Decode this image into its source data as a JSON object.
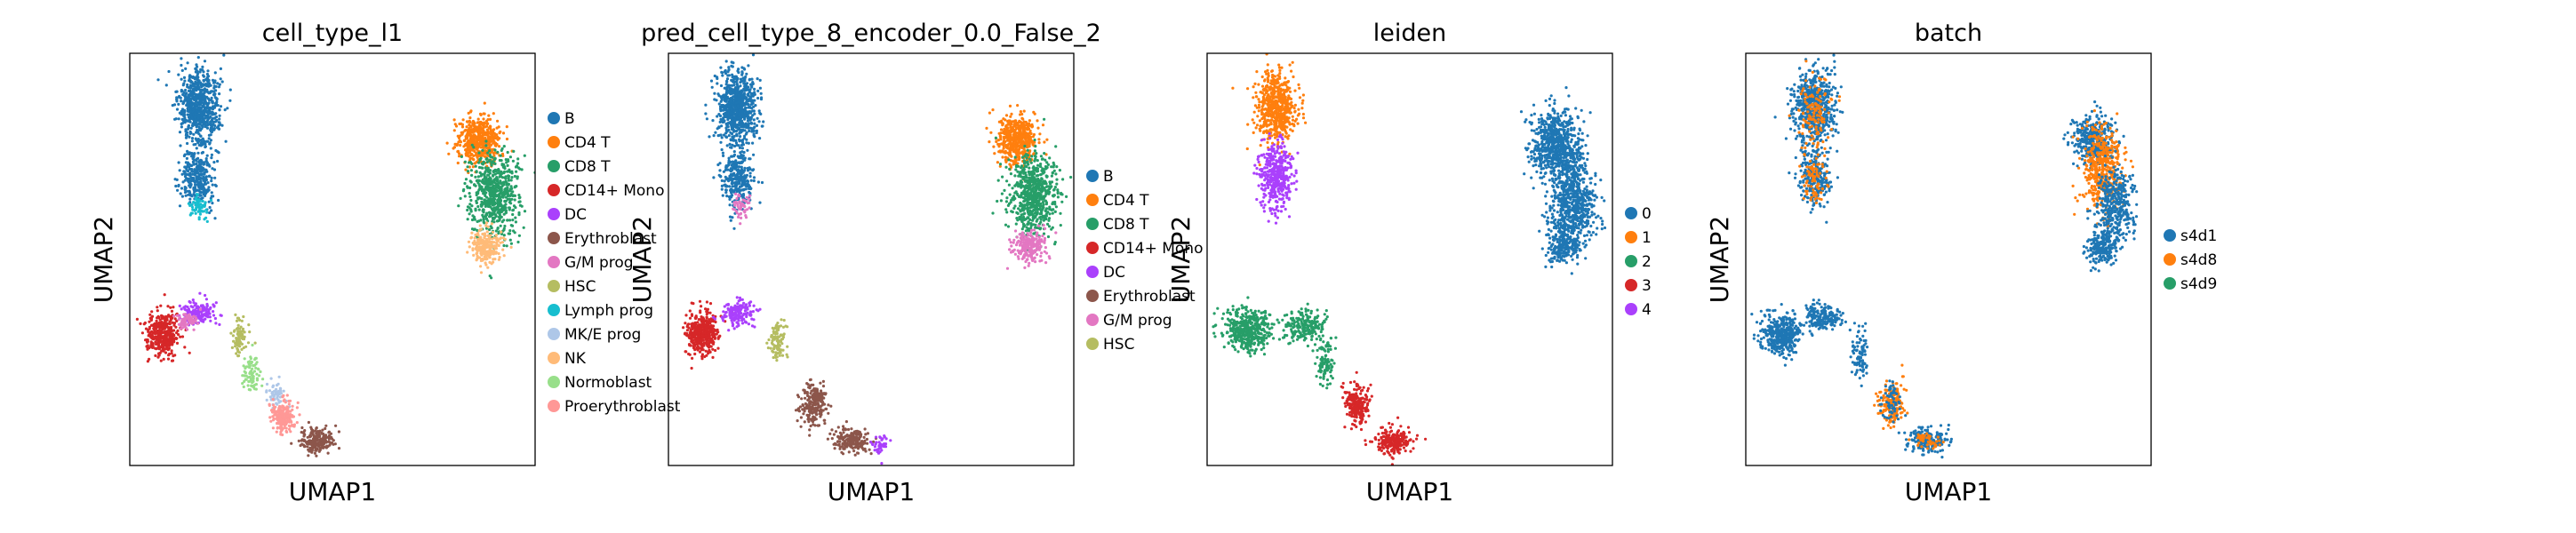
{
  "figure": {
    "panel_count": 4
  },
  "chart_data": [
    {
      "type": "scatter",
      "title": "cell_type_l1",
      "xlabel": "UMAP1",
      "ylabel": "UMAP2",
      "grid": false,
      "legend_position": "right",
      "categories": [
        "B",
        "CD4 T",
        "CD8 T",
        "CD14+ Mono",
        "DC",
        "Erythroblast",
        "G/M prog",
        "HSC",
        "Lymph prog",
        "MK/E prog",
        "NK",
        "Normoblast",
        "Proerythroblast"
      ],
      "colors": [
        "#1f77b4",
        "#ff7f0e",
        "#279e68",
        "#d62728",
        "#aa40fc",
        "#8c564b",
        "#e377c2",
        "#b5bd61",
        "#17becf",
        "#aec7e8",
        "#ffbb78",
        "#98df8a",
        "#ff9896"
      ],
      "clusters": [
        {
          "category": "B",
          "cx": 0.17,
          "cy": 0.87,
          "rx": 0.05,
          "ry": 0.09,
          "n": 700
        },
        {
          "category": "B",
          "cx": 0.17,
          "cy": 0.7,
          "rx": 0.04,
          "ry": 0.07,
          "n": 300
        },
        {
          "category": "Lymph prog",
          "cx": 0.17,
          "cy": 0.63,
          "rx": 0.02,
          "ry": 0.03,
          "n": 60
        },
        {
          "category": "CD4 T",
          "cx": 0.86,
          "cy": 0.79,
          "rx": 0.05,
          "ry": 0.06,
          "n": 500
        },
        {
          "category": "CD8 T",
          "cx": 0.9,
          "cy": 0.66,
          "rx": 0.06,
          "ry": 0.1,
          "n": 650
        },
        {
          "category": "NK",
          "cx": 0.88,
          "cy": 0.53,
          "rx": 0.04,
          "ry": 0.04,
          "n": 220
        },
        {
          "category": "CD14+ Mono",
          "cx": 0.08,
          "cy": 0.32,
          "rx": 0.04,
          "ry": 0.05,
          "n": 400
        },
        {
          "category": "DC",
          "cx": 0.17,
          "cy": 0.37,
          "rx": 0.04,
          "ry": 0.03,
          "n": 150
        },
        {
          "category": "HSC",
          "cx": 0.27,
          "cy": 0.31,
          "rx": 0.02,
          "ry": 0.04,
          "n": 80
        },
        {
          "category": "G/M prog",
          "cx": 0.14,
          "cy": 0.35,
          "rx": 0.03,
          "ry": 0.02,
          "n": 60
        },
        {
          "category": "Normoblast",
          "cx": 0.3,
          "cy": 0.22,
          "rx": 0.02,
          "ry": 0.05,
          "n": 80
        },
        {
          "category": "MK/E prog",
          "cx": 0.36,
          "cy": 0.17,
          "rx": 0.02,
          "ry": 0.03,
          "n": 60
        },
        {
          "category": "Proerythroblast",
          "cx": 0.38,
          "cy": 0.12,
          "rx": 0.03,
          "ry": 0.04,
          "n": 200
        },
        {
          "category": "Erythroblast",
          "cx": 0.46,
          "cy": 0.06,
          "rx": 0.04,
          "ry": 0.03,
          "n": 200
        }
      ]
    },
    {
      "type": "scatter",
      "title": "pred_cell_type_8_encoder_0.0_False_2",
      "xlabel": "UMAP1",
      "ylabel": "UMAP2",
      "grid": false,
      "legend_position": "right",
      "categories": [
        "B",
        "CD4 T",
        "CD8 T",
        "CD14+ Mono",
        "DC",
        "Erythroblast",
        "G/M prog",
        "HSC"
      ],
      "colors": [
        "#1f77b4",
        "#ff7f0e",
        "#279e68",
        "#d62728",
        "#aa40fc",
        "#8c564b",
        "#e377c2",
        "#b5bd61"
      ],
      "clusters": [
        {
          "category": "B",
          "cx": 0.17,
          "cy": 0.87,
          "rx": 0.05,
          "ry": 0.09,
          "n": 700
        },
        {
          "category": "B",
          "cx": 0.17,
          "cy": 0.7,
          "rx": 0.04,
          "ry": 0.07,
          "n": 300
        },
        {
          "category": "G/M prog",
          "cx": 0.18,
          "cy": 0.63,
          "rx": 0.02,
          "ry": 0.03,
          "n": 60
        },
        {
          "category": "CD4 T",
          "cx": 0.86,
          "cy": 0.79,
          "rx": 0.05,
          "ry": 0.06,
          "n": 500
        },
        {
          "category": "CD8 T",
          "cx": 0.9,
          "cy": 0.66,
          "rx": 0.06,
          "ry": 0.1,
          "n": 650
        },
        {
          "category": "G/M prog",
          "cx": 0.89,
          "cy": 0.53,
          "rx": 0.04,
          "ry": 0.04,
          "n": 220
        },
        {
          "category": "CD14+ Mono",
          "cx": 0.08,
          "cy": 0.32,
          "rx": 0.04,
          "ry": 0.05,
          "n": 400
        },
        {
          "category": "DC",
          "cx": 0.17,
          "cy": 0.37,
          "rx": 0.04,
          "ry": 0.03,
          "n": 150
        },
        {
          "category": "HSC",
          "cx": 0.27,
          "cy": 0.3,
          "rx": 0.02,
          "ry": 0.05,
          "n": 100
        },
        {
          "category": "Erythroblast",
          "cx": 0.36,
          "cy": 0.15,
          "rx": 0.03,
          "ry": 0.05,
          "n": 220
        },
        {
          "category": "Erythroblast",
          "cx": 0.45,
          "cy": 0.06,
          "rx": 0.04,
          "ry": 0.03,
          "n": 200
        },
        {
          "category": "DC",
          "cx": 0.52,
          "cy": 0.05,
          "rx": 0.02,
          "ry": 0.02,
          "n": 40
        }
      ]
    },
    {
      "type": "scatter",
      "title": "leiden",
      "xlabel": "UMAP1",
      "ylabel": "UMAP2",
      "grid": false,
      "legend_position": "right",
      "categories": [
        "0",
        "1",
        "2",
        "3",
        "4"
      ],
      "colors": [
        "#1f77b4",
        "#ff7f0e",
        "#279e68",
        "#d62728",
        "#aa40fc"
      ],
      "clusters": [
        {
          "category": "1",
          "cx": 0.17,
          "cy": 0.87,
          "rx": 0.05,
          "ry": 0.08,
          "n": 600
        },
        {
          "category": "4",
          "cx": 0.17,
          "cy": 0.7,
          "rx": 0.04,
          "ry": 0.08,
          "n": 400
        },
        {
          "category": "0",
          "cx": 0.86,
          "cy": 0.78,
          "rx": 0.06,
          "ry": 0.08,
          "n": 700
        },
        {
          "category": "0",
          "cx": 0.9,
          "cy": 0.64,
          "rx": 0.06,
          "ry": 0.1,
          "n": 650
        },
        {
          "category": "0",
          "cx": 0.88,
          "cy": 0.53,
          "rx": 0.04,
          "ry": 0.04,
          "n": 200
        },
        {
          "category": "2",
          "cx": 0.1,
          "cy": 0.33,
          "rx": 0.06,
          "ry": 0.05,
          "n": 450
        },
        {
          "category": "2",
          "cx": 0.24,
          "cy": 0.34,
          "rx": 0.05,
          "ry": 0.04,
          "n": 200
        },
        {
          "category": "2",
          "cx": 0.29,
          "cy": 0.25,
          "rx": 0.02,
          "ry": 0.06,
          "n": 100
        },
        {
          "category": "3",
          "cx": 0.37,
          "cy": 0.15,
          "rx": 0.03,
          "ry": 0.05,
          "n": 220
        },
        {
          "category": "3",
          "cx": 0.46,
          "cy": 0.06,
          "rx": 0.05,
          "ry": 0.03,
          "n": 220
        }
      ]
    },
    {
      "type": "scatter",
      "title": "batch",
      "xlabel": "UMAP1",
      "ylabel": "UMAP2",
      "grid": false,
      "legend_position": "right",
      "categories": [
        "s4d1",
        "s4d8",
        "s4d9"
      ],
      "colors": [
        "#1f77b4",
        "#ff7f0e",
        "#279e68"
      ],
      "clusters": [
        {
          "category": "s4d1",
          "cx": 0.17,
          "cy": 0.87,
          "rx": 0.05,
          "ry": 0.09,
          "n": 600
        },
        {
          "category": "s4d8",
          "cx": 0.17,
          "cy": 0.85,
          "rx": 0.04,
          "ry": 0.08,
          "n": 120
        },
        {
          "category": "s4d1",
          "cx": 0.17,
          "cy": 0.7,
          "rx": 0.04,
          "ry": 0.07,
          "n": 250
        },
        {
          "category": "s4d8",
          "cx": 0.17,
          "cy": 0.7,
          "rx": 0.03,
          "ry": 0.06,
          "n": 80
        },
        {
          "category": "s4d1",
          "cx": 0.86,
          "cy": 0.79,
          "rx": 0.05,
          "ry": 0.06,
          "n": 400
        },
        {
          "category": "s4d8",
          "cx": 0.88,
          "cy": 0.72,
          "rx": 0.05,
          "ry": 0.1,
          "n": 450
        },
        {
          "category": "s4d1",
          "cx": 0.91,
          "cy": 0.63,
          "rx": 0.05,
          "ry": 0.09,
          "n": 350
        },
        {
          "category": "s4d1",
          "cx": 0.88,
          "cy": 0.53,
          "rx": 0.04,
          "ry": 0.04,
          "n": 200
        },
        {
          "category": "s4d1",
          "cx": 0.09,
          "cy": 0.32,
          "rx": 0.05,
          "ry": 0.05,
          "n": 400
        },
        {
          "category": "s4d1",
          "cx": 0.19,
          "cy": 0.36,
          "rx": 0.05,
          "ry": 0.03,
          "n": 180
        },
        {
          "category": "s4d1",
          "cx": 0.28,
          "cy": 0.27,
          "rx": 0.02,
          "ry": 0.06,
          "n": 90
        },
        {
          "category": "s4d8",
          "cx": 0.36,
          "cy": 0.15,
          "rx": 0.03,
          "ry": 0.05,
          "n": 180
        },
        {
          "category": "s4d1",
          "cx": 0.36,
          "cy": 0.15,
          "rx": 0.03,
          "ry": 0.05,
          "n": 60
        },
        {
          "category": "s4d1",
          "cx": 0.45,
          "cy": 0.06,
          "rx": 0.05,
          "ry": 0.03,
          "n": 200
        },
        {
          "category": "s4d8",
          "cx": 0.45,
          "cy": 0.06,
          "rx": 0.04,
          "ry": 0.02,
          "n": 40
        }
      ]
    }
  ]
}
